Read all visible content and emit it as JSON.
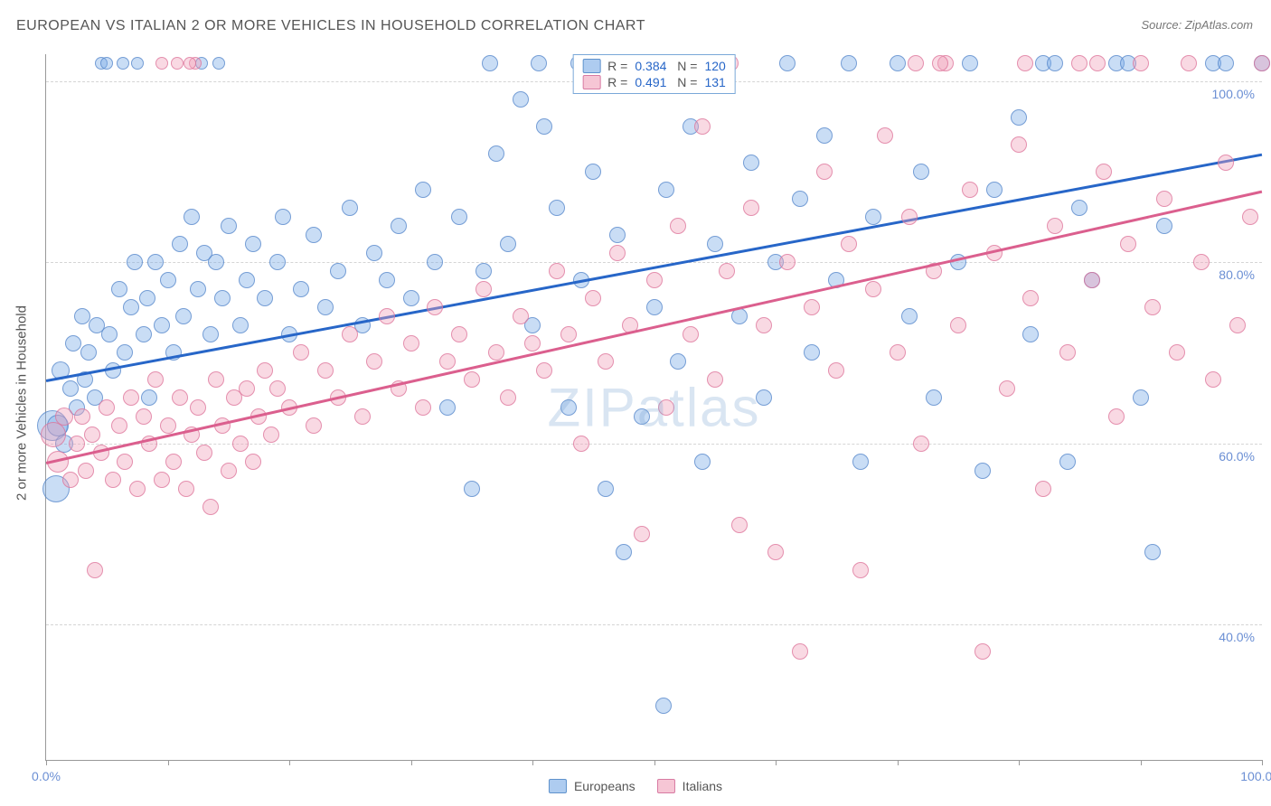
{
  "title": "EUROPEAN VS ITALIAN 2 OR MORE VEHICLES IN HOUSEHOLD CORRELATION CHART",
  "source": "Source: ZipAtlas.com",
  "ylabel": "2 or more Vehicles in Household",
  "watermark": "ZIPatlas",
  "chart": {
    "type": "scatter",
    "background_color": "#ffffff",
    "grid_color": "#d5d5d5",
    "axis_color": "#999999",
    "tick_label_color": "#6b8fd4",
    "tick_fontsize": 14,
    "ylabel_fontsize": 15,
    "title_fontsize": 16,
    "xlim": [
      0,
      100
    ],
    "ylim": [
      25,
      103
    ],
    "xticks": [
      0,
      10,
      20,
      30,
      40,
      50,
      60,
      70,
      80,
      90,
      100
    ],
    "xtick_labels": {
      "0": "0.0%",
      "100": "100.0%"
    },
    "yticks": [
      40,
      60,
      80,
      100
    ],
    "ytick_labels": {
      "40": "40.0%",
      "60": "60.0%",
      "80": "80.0%",
      "100": "100.0%"
    },
    "point_radius_default": 9,
    "series": [
      {
        "name": "Europeans",
        "color_fill": "rgba(120,170,230,0.4)",
        "color_stroke": "rgba(80,130,200,0.7)",
        "trend_color": "#2766c8",
        "trendline": {
          "x1": 0,
          "y1": 67,
          "x2": 100,
          "y2": 92
        },
        "R": "0.384",
        "N": "120",
        "points": [
          {
            "x": 0.5,
            "y": 62,
            "r": 17
          },
          {
            "x": 0.8,
            "y": 55,
            "r": 15
          },
          {
            "x": 1,
            "y": 62,
            "r": 12
          },
          {
            "x": 1.2,
            "y": 68,
            "r": 10
          },
          {
            "x": 1.5,
            "y": 60,
            "r": 10
          },
          {
            "x": 2,
            "y": 66
          },
          {
            "x": 2.2,
            "y": 71
          },
          {
            "x": 2.5,
            "y": 64
          },
          {
            "x": 3,
            "y": 74
          },
          {
            "x": 3.2,
            "y": 67
          },
          {
            "x": 3.5,
            "y": 70
          },
          {
            "x": 4,
            "y": 65
          },
          {
            "x": 4.2,
            "y": 73
          },
          {
            "x": 4.5,
            "y": 102,
            "r": 7
          },
          {
            "x": 5,
            "y": 102,
            "r": 7
          },
          {
            "x": 5.2,
            "y": 72
          },
          {
            "x": 5.5,
            "y": 68
          },
          {
            "x": 6,
            "y": 77
          },
          {
            "x": 6.3,
            "y": 102,
            "r": 7
          },
          {
            "x": 6.5,
            "y": 70
          },
          {
            "x": 7,
            "y": 75
          },
          {
            "x": 7.3,
            "y": 80
          },
          {
            "x": 7.5,
            "y": 102,
            "r": 7
          },
          {
            "x": 8,
            "y": 72
          },
          {
            "x": 8.3,
            "y": 76
          },
          {
            "x": 8.5,
            "y": 65
          },
          {
            "x": 9,
            "y": 80
          },
          {
            "x": 9.5,
            "y": 73
          },
          {
            "x": 10,
            "y": 78
          },
          {
            "x": 10.5,
            "y": 70
          },
          {
            "x": 11,
            "y": 82
          },
          {
            "x": 11.3,
            "y": 74
          },
          {
            "x": 12,
            "y": 85
          },
          {
            "x": 12.5,
            "y": 77
          },
          {
            "x": 13,
            "y": 81
          },
          {
            "x": 13.5,
            "y": 72
          },
          {
            "x": 14,
            "y": 80
          },
          {
            "x": 14.5,
            "y": 76
          },
          {
            "x": 15,
            "y": 84
          },
          {
            "x": 16,
            "y": 73
          },
          {
            "x": 16.5,
            "y": 78
          },
          {
            "x": 17,
            "y": 82
          },
          {
            "x": 18,
            "y": 76
          },
          {
            "x": 19,
            "y": 80
          },
          {
            "x": 19.5,
            "y": 85
          },
          {
            "x": 20,
            "y": 72
          },
          {
            "x": 21,
            "y": 77
          },
          {
            "x": 22,
            "y": 83
          },
          {
            "x": 23,
            "y": 75
          },
          {
            "x": 24,
            "y": 79
          },
          {
            "x": 25,
            "y": 86
          },
          {
            "x": 26,
            "y": 73
          },
          {
            "x": 27,
            "y": 81
          },
          {
            "x": 28,
            "y": 78
          },
          {
            "x": 29,
            "y": 84
          },
          {
            "x": 30,
            "y": 76
          },
          {
            "x": 31,
            "y": 88
          },
          {
            "x": 32,
            "y": 80
          },
          {
            "x": 33,
            "y": 64
          },
          {
            "x": 34,
            "y": 85
          },
          {
            "x": 35,
            "y": 55
          },
          {
            "x": 36,
            "y": 79
          },
          {
            "x": 37,
            "y": 92
          },
          {
            "x": 38,
            "y": 82
          },
          {
            "x": 39,
            "y": 98
          },
          {
            "x": 40,
            "y": 73
          },
          {
            "x": 41,
            "y": 95
          },
          {
            "x": 42,
            "y": 86
          },
          {
            "x": 43,
            "y": 64
          },
          {
            "x": 44,
            "y": 78
          },
          {
            "x": 45,
            "y": 90
          },
          {
            "x": 46,
            "y": 55
          },
          {
            "x": 47,
            "y": 83
          },
          {
            "x": 47.5,
            "y": 48
          },
          {
            "x": 48,
            "y": 102
          },
          {
            "x": 49,
            "y": 63
          },
          {
            "x": 50,
            "y": 75
          },
          {
            "x": 50.8,
            "y": 31
          },
          {
            "x": 51,
            "y": 88
          },
          {
            "x": 52,
            "y": 69
          },
          {
            "x": 53,
            "y": 95
          },
          {
            "x": 54,
            "y": 58
          },
          {
            "x": 55,
            "y": 82
          },
          {
            "x": 56,
            "y": 102
          },
          {
            "x": 57,
            "y": 74
          },
          {
            "x": 58,
            "y": 91
          },
          {
            "x": 59,
            "y": 65
          },
          {
            "x": 60,
            "y": 80
          },
          {
            "x": 61,
            "y": 102
          },
          {
            "x": 62,
            "y": 87
          },
          {
            "x": 63,
            "y": 70
          },
          {
            "x": 64,
            "y": 94
          },
          {
            "x": 65,
            "y": 78
          },
          {
            "x": 66,
            "y": 102
          },
          {
            "x": 67,
            "y": 58
          },
          {
            "x": 68,
            "y": 85
          },
          {
            "x": 70,
            "y": 102
          },
          {
            "x": 71,
            "y": 74
          },
          {
            "x": 72,
            "y": 90
          },
          {
            "x": 73,
            "y": 65
          },
          {
            "x": 75,
            "y": 80
          },
          {
            "x": 76,
            "y": 102
          },
          {
            "x": 77,
            "y": 57
          },
          {
            "x": 78,
            "y": 88
          },
          {
            "x": 80,
            "y": 96
          },
          {
            "x": 81,
            "y": 72
          },
          {
            "x": 82,
            "y": 102
          },
          {
            "x": 83,
            "y": 102
          },
          {
            "x": 84,
            "y": 58
          },
          {
            "x": 85,
            "y": 86
          },
          {
            "x": 86,
            "y": 78
          },
          {
            "x": 88,
            "y": 102
          },
          {
            "x": 89,
            "y": 102
          },
          {
            "x": 90,
            "y": 65
          },
          {
            "x": 91,
            "y": 48
          },
          {
            "x": 92,
            "y": 84
          },
          {
            "x": 96,
            "y": 102
          },
          {
            "x": 97,
            "y": 102
          },
          {
            "x": 100,
            "y": 102
          },
          {
            "x": 12.8,
            "y": 102,
            "r": 7
          },
          {
            "x": 14.2,
            "y": 102,
            "r": 7
          },
          {
            "x": 36.5,
            "y": 102
          },
          {
            "x": 40.5,
            "y": 102
          },
          {
            "x": 43.8,
            "y": 102
          }
        ]
      },
      {
        "name": "Italians",
        "color_fill": "rgba(240,160,185,0.4)",
        "color_stroke": "rgba(220,110,150,0.7)",
        "trend_color": "#db5f8e",
        "trendline": {
          "x1": 0,
          "y1": 58,
          "x2": 100,
          "y2": 88
        },
        "R": "0.491",
        "N": "131",
        "points": [
          {
            "x": 0.6,
            "y": 61,
            "r": 14
          },
          {
            "x": 1,
            "y": 58,
            "r": 12
          },
          {
            "x": 1.5,
            "y": 63,
            "r": 10
          },
          {
            "x": 2,
            "y": 56
          },
          {
            "x": 2.5,
            "y": 60
          },
          {
            "x": 3,
            "y": 63
          },
          {
            "x": 3.3,
            "y": 57
          },
          {
            "x": 3.8,
            "y": 61
          },
          {
            "x": 4,
            "y": 46
          },
          {
            "x": 4.5,
            "y": 59
          },
          {
            "x": 5,
            "y": 64
          },
          {
            "x": 5.5,
            "y": 56
          },
          {
            "x": 6,
            "y": 62
          },
          {
            "x": 6.5,
            "y": 58
          },
          {
            "x": 7,
            "y": 65
          },
          {
            "x": 7.5,
            "y": 55
          },
          {
            "x": 8,
            "y": 63
          },
          {
            "x": 8.5,
            "y": 60
          },
          {
            "x": 9,
            "y": 67
          },
          {
            "x": 9.5,
            "y": 56
          },
          {
            "x": 10,
            "y": 62
          },
          {
            "x": 10.5,
            "y": 58
          },
          {
            "x": 11,
            "y": 65
          },
          {
            "x": 11.5,
            "y": 55
          },
          {
            "x": 12,
            "y": 61
          },
          {
            "x": 12.5,
            "y": 64
          },
          {
            "x": 13,
            "y": 59
          },
          {
            "x": 13.5,
            "y": 53
          },
          {
            "x": 14,
            "y": 67
          },
          {
            "x": 14.5,
            "y": 62
          },
          {
            "x": 15,
            "y": 57
          },
          {
            "x": 15.5,
            "y": 65
          },
          {
            "x": 16,
            "y": 60
          },
          {
            "x": 16.5,
            "y": 66
          },
          {
            "x": 17,
            "y": 58
          },
          {
            "x": 17.5,
            "y": 63
          },
          {
            "x": 18,
            "y": 68
          },
          {
            "x": 18.5,
            "y": 61
          },
          {
            "x": 19,
            "y": 66
          },
          {
            "x": 20,
            "y": 64
          },
          {
            "x": 21,
            "y": 70
          },
          {
            "x": 22,
            "y": 62
          },
          {
            "x": 23,
            "y": 68
          },
          {
            "x": 24,
            "y": 65
          },
          {
            "x": 25,
            "y": 72
          },
          {
            "x": 26,
            "y": 63
          },
          {
            "x": 27,
            "y": 69
          },
          {
            "x": 28,
            "y": 74
          },
          {
            "x": 29,
            "y": 66
          },
          {
            "x": 30,
            "y": 71
          },
          {
            "x": 31,
            "y": 64
          },
          {
            "x": 32,
            "y": 75
          },
          {
            "x": 33,
            "y": 69
          },
          {
            "x": 34,
            "y": 72
          },
          {
            "x": 35,
            "y": 67
          },
          {
            "x": 36,
            "y": 77
          },
          {
            "x": 37,
            "y": 70
          },
          {
            "x": 38,
            "y": 65
          },
          {
            "x": 39,
            "y": 74
          },
          {
            "x": 40,
            "y": 71
          },
          {
            "x": 41,
            "y": 68
          },
          {
            "x": 42,
            "y": 79
          },
          {
            "x": 43,
            "y": 72
          },
          {
            "x": 44,
            "y": 60
          },
          {
            "x": 45,
            "y": 76
          },
          {
            "x": 46,
            "y": 69
          },
          {
            "x": 47,
            "y": 81
          },
          {
            "x": 48,
            "y": 73
          },
          {
            "x": 49,
            "y": 50
          },
          {
            "x": 50,
            "y": 78
          },
          {
            "x": 51,
            "y": 64
          },
          {
            "x": 52,
            "y": 84
          },
          {
            "x": 53,
            "y": 72
          },
          {
            "x": 54,
            "y": 95
          },
          {
            "x": 55,
            "y": 67
          },
          {
            "x": 56,
            "y": 79
          },
          {
            "x": 57,
            "y": 51
          },
          {
            "x": 58,
            "y": 86
          },
          {
            "x": 59,
            "y": 73
          },
          {
            "x": 60,
            "y": 48
          },
          {
            "x": 61,
            "y": 80
          },
          {
            "x": 62,
            "y": 37
          },
          {
            "x": 63,
            "y": 75
          },
          {
            "x": 64,
            "y": 90
          },
          {
            "x": 65,
            "y": 68
          },
          {
            "x": 66,
            "y": 82
          },
          {
            "x": 67,
            "y": 46
          },
          {
            "x": 68,
            "y": 77
          },
          {
            "x": 69,
            "y": 94
          },
          {
            "x": 70,
            "y": 70
          },
          {
            "x": 71,
            "y": 85
          },
          {
            "x": 72,
            "y": 60
          },
          {
            "x": 73,
            "y": 79
          },
          {
            "x": 74,
            "y": 102
          },
          {
            "x": 75,
            "y": 73
          },
          {
            "x": 76,
            "y": 88
          },
          {
            "x": 77,
            "y": 37
          },
          {
            "x": 78,
            "y": 81
          },
          {
            "x": 79,
            "y": 66
          },
          {
            "x": 80,
            "y": 93
          },
          {
            "x": 81,
            "y": 76
          },
          {
            "x": 82,
            "y": 55
          },
          {
            "x": 83,
            "y": 84
          },
          {
            "x": 84,
            "y": 70
          },
          {
            "x": 85,
            "y": 102
          },
          {
            "x": 86,
            "y": 78
          },
          {
            "x": 87,
            "y": 90
          },
          {
            "x": 88,
            "y": 63
          },
          {
            "x": 89,
            "y": 82
          },
          {
            "x": 90,
            "y": 102
          },
          {
            "x": 91,
            "y": 75
          },
          {
            "x": 92,
            "y": 87
          },
          {
            "x": 93,
            "y": 70
          },
          {
            "x": 94,
            "y": 102
          },
          {
            "x": 95,
            "y": 80
          },
          {
            "x": 96,
            "y": 67
          },
          {
            "x": 97,
            "y": 91
          },
          {
            "x": 98,
            "y": 73
          },
          {
            "x": 99,
            "y": 85
          },
          {
            "x": 100,
            "y": 102
          },
          {
            "x": 71.5,
            "y": 102
          },
          {
            "x": 73.5,
            "y": 102
          },
          {
            "x": 80.5,
            "y": 102
          },
          {
            "x": 86.5,
            "y": 102
          },
          {
            "x": 44.2,
            "y": 102
          },
          {
            "x": 49.8,
            "y": 102
          },
          {
            "x": 56.3,
            "y": 102
          },
          {
            "x": 12.3,
            "y": 102,
            "r": 7
          },
          {
            "x": 9.5,
            "y": 102,
            "r": 7
          },
          {
            "x": 10.8,
            "y": 102,
            "r": 7
          },
          {
            "x": 11.8,
            "y": 102,
            "r": 7
          }
        ]
      }
    ],
    "legend_bottom": [
      {
        "label": "Europeans",
        "class": "blue"
      },
      {
        "label": "Italians",
        "class": "pink"
      }
    ]
  }
}
